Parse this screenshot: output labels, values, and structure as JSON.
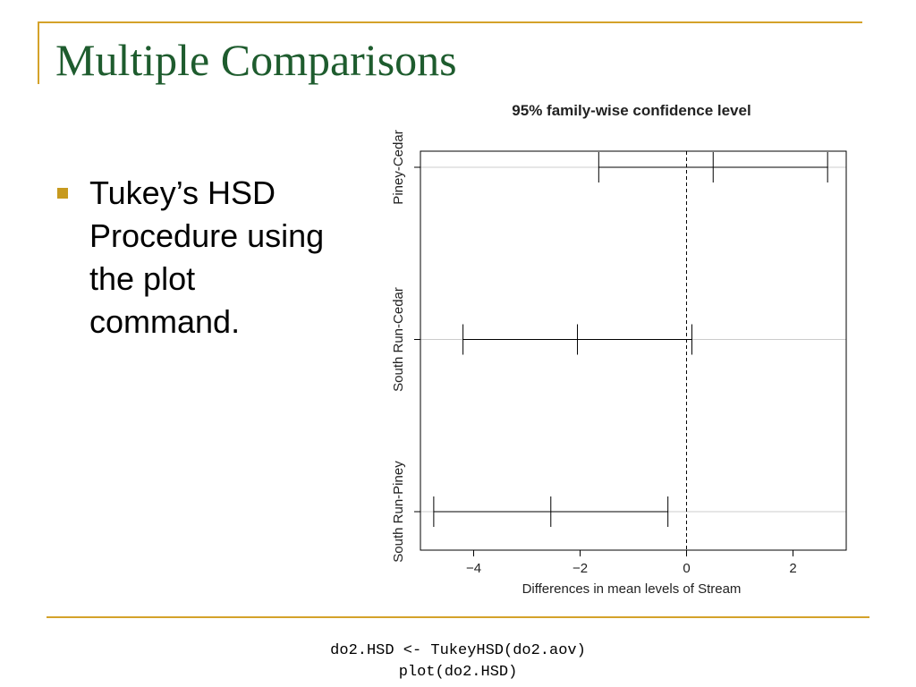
{
  "slide": {
    "title": "Multiple Comparisons",
    "title_color": "#1E5C2E",
    "accent_color": "#D4A22A",
    "bullet_color": "#C79A1F",
    "bullets": [
      {
        "text": "Tukey’s HSD Procedure using the plot command."
      }
    ],
    "code_lines": [
      "do2.HSD <- TukeyHSD(do2.aov)",
      "plot(do2.HSD)"
    ]
  },
  "chart_data": {
    "type": "interval",
    "title": "95% family-wise confidence level",
    "xlabel": "Differences in mean levels of Stream",
    "ylabel": "",
    "xlim": [
      -5,
      3
    ],
    "xticks": [
      -4,
      -2,
      0,
      2
    ],
    "reference_line": 0,
    "grid": "horizontal lines at each comparison",
    "comparisons": [
      {
        "label": "Piney-Cedar",
        "lower": -1.65,
        "diff": 0.5,
        "upper": 2.65
      },
      {
        "label": "South Run-Cedar",
        "lower": -4.2,
        "diff": -2.05,
        "upper": 0.1
      },
      {
        "label": "South Run-Piney",
        "lower": -4.75,
        "diff": -2.55,
        "upper": -0.35
      }
    ]
  }
}
